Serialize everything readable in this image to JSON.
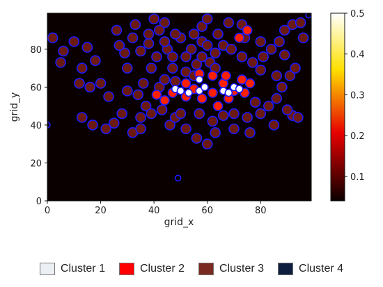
{
  "chart_data": {
    "type": "heatmap",
    "title": "",
    "xlabel": "grid_x",
    "ylabel": "grid_y",
    "xlim": [
      0,
      99
    ],
    "ylim": [
      0,
      99
    ],
    "x_ticks": [
      "0",
      "20",
      "40",
      "60",
      "80"
    ],
    "y_ticks": [
      "0",
      "20",
      "40",
      "60",
      "80"
    ],
    "colorbar": {
      "colormap": "hot",
      "range": [
        0.04,
        0.5
      ],
      "ticks": [
        "0.1",
        "0.2",
        "0.3",
        "0.4",
        "0.5"
      ]
    },
    "background_color": "#0a0000",
    "contour_color": "#1a1aff",
    "cluster_colors": {
      "Cluster 1": "#ffffff",
      "Cluster 2": "#ff2000",
      "Cluster 3": "#6b1a12",
      "Cluster 4": "#0a0000"
    },
    "clusters": [
      {
        "name": "Cluster 1",
        "points": [
          [
            48,
            59
          ],
          [
            50,
            58
          ],
          [
            53,
            57
          ],
          [
            57,
            58
          ],
          [
            59,
            60
          ],
          [
            66,
            58
          ],
          [
            68,
            57
          ],
          [
            70,
            60
          ],
          [
            72,
            59
          ],
          [
            57,
            64
          ]
        ]
      },
      {
        "name": "Cluster 2",
        "points": [
          [
            44,
            53
          ],
          [
            47,
            57
          ],
          [
            52,
            55
          ],
          [
            55,
            59
          ],
          [
            58,
            54
          ],
          [
            62,
            57
          ],
          [
            66,
            62
          ],
          [
            70,
            58
          ],
          [
            74,
            57
          ],
          [
            57,
            67
          ],
          [
            62,
            66
          ],
          [
            67,
            66
          ],
          [
            73,
            64
          ],
          [
            76,
            62
          ],
          [
            72,
            86
          ],
          [
            75,
            90
          ],
          [
            41,
            56
          ],
          [
            64,
            50
          ],
          [
            68,
            54
          ],
          [
            52,
            62
          ]
        ]
      },
      {
        "name": "Cluster 3",
        "points": [
          [
            34,
            56
          ],
          [
            37,
            50
          ],
          [
            39,
            46
          ],
          [
            42,
            60
          ],
          [
            44,
            64
          ],
          [
            47,
            70
          ],
          [
            52,
            68
          ],
          [
            56,
            72
          ],
          [
            61,
            73
          ],
          [
            63,
            78
          ],
          [
            66,
            82
          ],
          [
            69,
            80
          ],
          [
            73,
            76
          ],
          [
            77,
            73
          ],
          [
            80,
            69
          ],
          [
            84,
            80
          ],
          [
            87,
            84
          ],
          [
            89,
            90
          ],
          [
            92,
            93
          ],
          [
            95,
            94
          ],
          [
            74,
            86
          ],
          [
            73,
            93
          ],
          [
            58,
            92
          ],
          [
            55,
            88
          ],
          [
            50,
            86
          ],
          [
            45,
            80
          ],
          [
            41,
            76
          ],
          [
            39,
            70
          ],
          [
            36,
            62
          ],
          [
            30,
            58
          ],
          [
            28,
            46
          ],
          [
            25,
            41
          ],
          [
            22,
            38
          ],
          [
            17,
            40
          ],
          [
            13,
            44
          ],
          [
            35,
            79
          ],
          [
            38,
            83
          ],
          [
            29,
            78
          ],
          [
            32,
            86
          ],
          [
            26,
            90
          ],
          [
            15,
            81
          ],
          [
            10,
            84
          ],
          [
            2,
            86
          ],
          [
            5,
            73
          ],
          [
            13,
            70
          ],
          [
            18,
            74
          ],
          [
            23,
            55
          ],
          [
            46,
            40
          ],
          [
            52,
            38
          ],
          [
            56,
            33
          ],
          [
            60,
            30
          ],
          [
            62,
            42
          ],
          [
            66,
            45
          ],
          [
            70,
            46
          ],
          [
            75,
            44
          ],
          [
            80,
            46
          ],
          [
            83,
            50
          ],
          [
            86,
            54
          ],
          [
            88,
            60
          ],
          [
            91,
            66
          ],
          [
            93,
            70
          ],
          [
            92,
            45
          ],
          [
            94,
            44
          ],
          [
            44,
            84
          ],
          [
            48,
            88
          ],
          [
            54,
            80
          ],
          [
            58,
            84
          ],
          [
            64,
            88
          ],
          [
            68,
            94
          ],
          [
            60,
            96
          ],
          [
            44,
            94
          ],
          [
            40,
            96
          ],
          [
            33,
            93
          ],
          [
            27,
            82
          ],
          [
            20,
            62
          ],
          [
            16,
            60
          ],
          [
            30,
            70
          ],
          [
            35,
            44
          ],
          [
            32,
            36
          ],
          [
            48,
            44
          ],
          [
            57,
            46
          ],
          [
            63,
            36
          ],
          [
            76,
            36
          ],
          [
            85,
            40
          ],
          [
            81,
            76
          ],
          [
            89,
            77
          ],
          [
            96,
            86
          ],
          [
            35,
            38
          ],
          [
            43,
            48
          ],
          [
            50,
            46
          ],
          [
            70,
            38
          ],
          [
            78,
            52
          ],
          [
            90,
            48
          ],
          [
            12,
            62
          ],
          [
            6,
            79
          ],
          [
            47,
            76
          ],
          [
            58,
            76
          ],
          [
            42,
            90
          ],
          [
            38,
            88
          ],
          [
            80,
            84
          ],
          [
            86,
            66
          ],
          [
            63,
            70
          ],
          [
            60,
            82
          ],
          [
            52,
            76
          ],
          [
            48,
            63
          ],
          [
            55,
            66
          ]
        ]
      },
      {
        "name": "Cluster 4",
        "points": [
          [
            49,
            12
          ],
          [
            98,
            98
          ],
          [
            0,
            40
          ]
        ]
      }
    ]
  },
  "legend": {
    "items": [
      {
        "label": "Cluster 1",
        "color": "#ecf0f4"
      },
      {
        "label": "Cluster 2",
        "color": "#ff0000"
      },
      {
        "label": "Cluster 3",
        "color": "#7b2a22"
      },
      {
        "label": "Cluster 4",
        "color": "#0d1e3e"
      }
    ]
  }
}
